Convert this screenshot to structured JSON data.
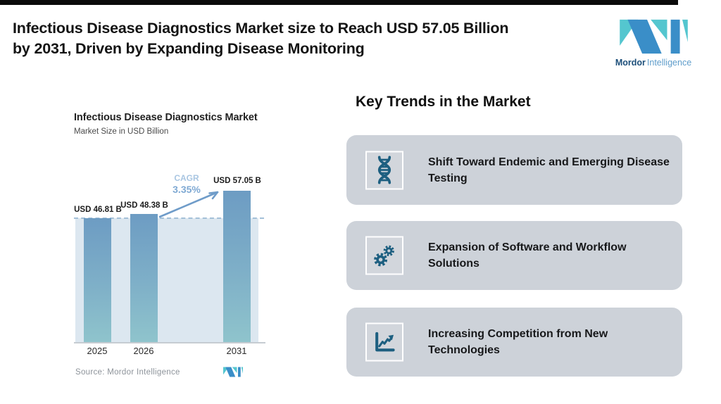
{
  "page": {
    "title_line1": "Infectious Disease Diagnostics Market size to Reach USD 57.05 Billion",
    "title_line2": "by 2031, Driven by Expanding Disease Monitoring"
  },
  "brand": {
    "name_bold": "Mordor",
    "name_light": "Intelligence"
  },
  "chart": {
    "title": "Infectious Disease Diagnostics Market",
    "subtitle": "Market Size in USD Billion",
    "cagr_label": "CAGR",
    "cagr_value": "3.35%",
    "source": "Source: Mordor Intelligence"
  },
  "chart_data": {
    "type": "bar",
    "categories": [
      "2025",
      "2026",
      "2031"
    ],
    "values": [
      46.81,
      48.38,
      57.05
    ],
    "value_labels": [
      "USD 46.81 B",
      "USD 48.38 B",
      "USD 57.05 B"
    ],
    "title": "Infectious Disease Diagnostics Market",
    "ylabel": "Market Size in USD Billion",
    "xlabel": "",
    "ylim": [
      0,
      65
    ],
    "grid": false,
    "annotations": {
      "cagr": "3.35%",
      "dashed_reference_line_at": 46.81,
      "arrow": "from 2026 bar to 2031 bar"
    },
    "source": "Source: Mordor Intelligence"
  },
  "trends": {
    "heading": "Key Trends in the Market",
    "items": [
      {
        "icon": "dna-icon",
        "text": "Shift Toward Endemic and Emerging Disease Testing"
      },
      {
        "icon": "gears-icon",
        "text": "Expansion of Software and Workflow Solutions"
      },
      {
        "icon": "line-chart-icon",
        "text": "Increasing Competition from New Technologies"
      }
    ]
  },
  "colors": {
    "bar_top": "#6d9cc3",
    "bar_bottom": "#8fc4cc",
    "plot_background": "#dce7f0",
    "dashed_line": "#a4c0d8",
    "arrow": "#6f9cc9",
    "cagr_label": "#a9c6e2",
    "cagr_value": "#7fa9d3",
    "card_background": "#cdd2d9",
    "icon": "#1d5f80",
    "logo_blue": "#3a8ec8",
    "logo_teal": "#54c6cf",
    "top_bar": "#0b0b0b"
  }
}
